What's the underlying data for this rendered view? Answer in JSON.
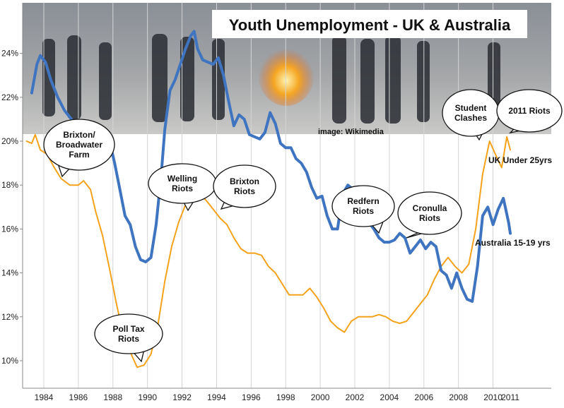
{
  "chart_data": {
    "type": "line",
    "title": "Youth Unemployment - UK & Australia",
    "image_credit": "image: Wikimedia",
    "xlabel": "",
    "ylabel": "",
    "xlim": [
      1983,
      2011
    ],
    "ylim": [
      9.0,
      25.5
    ],
    "x_ticks": [
      1984,
      1986,
      1988,
      1990,
      1992,
      1994,
      1996,
      1998,
      2000,
      2002,
      2004,
      2006,
      2008,
      2010,
      2011
    ],
    "y_ticks": [
      10,
      12,
      14,
      16,
      18,
      20,
      22,
      24
    ],
    "y_tick_labels": [
      "10%",
      "12%",
      "14%",
      "16%",
      "18%",
      "20%",
      "22%",
      "24%"
    ],
    "grid": "vertical",
    "series": [
      {
        "name": "UK Under 25yrs",
        "color": "#F5A21B",
        "x": [
          1983.0,
          1983.3,
          1983.5,
          1983.8,
          1984.2,
          1984.6,
          1985.0,
          1985.5,
          1986.0,
          1986.3,
          1986.7,
          1987.0,
          1987.4,
          1987.8,
          1988.2,
          1988.6,
          1989.0,
          1989.4,
          1989.8,
          1990.2,
          1990.6,
          1991.0,
          1991.4,
          1991.8,
          1992.2,
          1992.6,
          1993.0,
          1993.4,
          1993.8,
          1994.2,
          1994.6,
          1995.0,
          1995.4,
          1995.8,
          1996.2,
          1996.6,
          1997.0,
          1997.4,
          1997.8,
          1998.2,
          1998.6,
          1999.0,
          1999.4,
          1999.8,
          2000.2,
          2000.6,
          2001.0,
          2001.4,
          2001.8,
          2002.2,
          2002.6,
          2003.0,
          2003.4,
          2003.8,
          2004.2,
          2004.6,
          2005.0,
          2005.4,
          2005.8,
          2006.2,
          2006.6,
          2007.0,
          2007.4,
          2007.8,
          2008.2,
          2008.6,
          2009.0,
          2009.4,
          2009.8,
          2010.2,
          2010.5,
          2010.8,
          2011.0
        ],
        "values": [
          20.0,
          19.9,
          20.3,
          19.6,
          19.4,
          18.8,
          18.3,
          18.0,
          18.0,
          18.2,
          17.8,
          16.8,
          15.7,
          14.2,
          12.6,
          11.2,
          10.4,
          9.7,
          9.8,
          10.3,
          11.6,
          13.6,
          15.2,
          16.3,
          17.1,
          17.5,
          17.6,
          17.3,
          16.9,
          16.5,
          16.2,
          15.6,
          15.1,
          14.9,
          14.9,
          14.8,
          14.3,
          14.0,
          13.5,
          13.0,
          13.0,
          13.0,
          13.3,
          12.9,
          12.4,
          11.8,
          11.5,
          11.3,
          11.8,
          12.0,
          12.0,
          12.0,
          12.1,
          12.0,
          11.8,
          11.7,
          11.8,
          12.2,
          12.6,
          13.0,
          13.7,
          14.3,
          14.7,
          14.3,
          14.0,
          14.4,
          16.0,
          18.5,
          20.0,
          19.3,
          18.8,
          20.2,
          19.6
        ]
      },
      {
        "name": "Australia 15-19 yrs",
        "color": "#3F74C0",
        "x": [
          1983.3,
          1983.6,
          1983.8,
          1984.1,
          1984.4,
          1984.8,
          1985.2,
          1985.6,
          1986.0,
          1986.3,
          1986.6,
          1987.0,
          1987.4,
          1987.8,
          1988.1,
          1988.4,
          1988.7,
          1989.0,
          1989.3,
          1989.6,
          1989.9,
          1990.2,
          1990.5,
          1990.8,
          1991.0,
          1991.3,
          1991.6,
          1991.9,
          1992.2,
          1992.5,
          1992.7,
          1992.9,
          1993.2,
          1993.5,
          1993.8,
          1994.1,
          1994.4,
          1994.7,
          1995.0,
          1995.3,
          1995.6,
          1995.9,
          1996.2,
          1996.5,
          1996.8,
          1997.1,
          1997.4,
          1997.7,
          1998.0,
          1998.3,
          1998.6,
          1998.9,
          1999.2,
          1999.5,
          1999.8,
          2000.1,
          2000.4,
          2000.7,
          2001.0,
          2001.3,
          2001.6,
          2001.9,
          2002.2,
          2002.5,
          2002.8,
          2003.1,
          2003.4,
          2003.7,
          2004.0,
          2004.3,
          2004.6,
          2004.9,
          2005.2,
          2005.5,
          2005.8,
          2006.1,
          2006.4,
          2006.7,
          2007.0,
          2007.3,
          2007.6,
          2007.9,
          2008.2,
          2008.5,
          2008.8,
          2009.1,
          2009.4,
          2009.7,
          2010.0,
          2010.3,
          2010.6,
          2010.9,
          2011.0
        ],
        "values": [
          22.2,
          23.5,
          23.9,
          23.6,
          22.8,
          22.0,
          21.4,
          21.0,
          20.5,
          20.6,
          20.4,
          20.3,
          20.5,
          20.0,
          19.0,
          17.8,
          16.6,
          16.2,
          15.2,
          14.6,
          14.5,
          14.7,
          16.2,
          18.5,
          20.5,
          22.3,
          22.8,
          23.5,
          24.2,
          24.8,
          25.0,
          24.2,
          23.7,
          23.6,
          23.5,
          23.8,
          23.0,
          21.8,
          20.7,
          21.2,
          21.0,
          20.3,
          20.2,
          20.1,
          20.4,
          21.3,
          20.8,
          19.9,
          19.7,
          19.7,
          19.2,
          19.0,
          18.6,
          17.9,
          17.4,
          17.5,
          16.6,
          16.0,
          16.0,
          17.6,
          18.0,
          17.8,
          17.7,
          17.0,
          16.3,
          16.0,
          15.6,
          15.4,
          15.4,
          15.5,
          15.8,
          15.6,
          14.9,
          15.2,
          15.5,
          15.1,
          15.4,
          15.2,
          14.1,
          13.9,
          13.3,
          14.0,
          13.3,
          12.8,
          12.7,
          14.3,
          16.6,
          17.0,
          16.2,
          16.9,
          17.4,
          16.3,
          15.8
        ]
      }
    ],
    "annotations": [
      {
        "id": "brixton-broadwater",
        "lines": [
          "Brixton/",
          "Broadwater",
          "Farm"
        ],
        "x": 1985.0,
        "y": 20.1
      },
      {
        "id": "poll-tax",
        "lines": [
          "Poll Tax",
          "Riots"
        ],
        "x": 1989.7,
        "y": 9.8
      },
      {
        "id": "welling",
        "lines": [
          "Welling",
          "Riots"
        ],
        "x": 1992.7,
        "y": 17.1
      },
      {
        "id": "brixton",
        "lines": [
          "Brixton",
          "Riots"
        ],
        "x": 1994.4,
        "y": 17.0
      },
      {
        "id": "redfern",
        "lines": [
          "Redfern",
          "Riots"
        ],
        "x": 2004.0,
        "y": 15.9
      },
      {
        "id": "cronulla",
        "lines": [
          "Cronulla",
          "Riots"
        ],
        "x": 2005.9,
        "y": 15.7
      },
      {
        "id": "student",
        "lines": [
          "Student",
          "Clashes"
        ],
        "x": 2009.9,
        "y": 20.2
      },
      {
        "id": "riots-2011",
        "lines": [
          "2011 Riots"
        ],
        "x": 2011.0,
        "y": 20.2
      }
    ]
  }
}
